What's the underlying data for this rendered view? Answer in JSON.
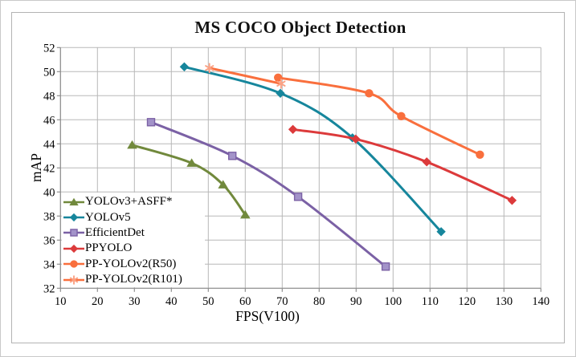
{
  "chart_data": {
    "type": "line",
    "title": "MS COCO Object Detection",
    "xlabel": "FPS(V100)",
    "ylabel": "mAP",
    "xlim": [
      10,
      140
    ],
    "ylim": [
      32,
      52
    ],
    "x_ticks": [
      10,
      20,
      30,
      40,
      50,
      60,
      70,
      80,
      90,
      100,
      110,
      120,
      130,
      140
    ],
    "y_ticks": [
      32,
      34,
      36,
      38,
      40,
      42,
      44,
      46,
      48,
      50,
      52
    ],
    "grid": true,
    "legend_position": "inside-bottom-left",
    "series": [
      {
        "name": "YOLOv3+ASFF*",
        "color": "#71893c",
        "marker": "triangle",
        "marker_color": "#71893c",
        "points": [
          [
            29.4,
            43.9
          ],
          [
            45.5,
            42.4
          ],
          [
            54,
            40.6
          ],
          [
            60,
            38.1
          ]
        ]
      },
      {
        "name": "YOLOv5",
        "color": "#16869c",
        "marker": "diamond",
        "marker_color": "#16869c",
        "points": [
          [
            43.5,
            50.4
          ],
          [
            69.5,
            48.2
          ],
          [
            89,
            44.5
          ],
          [
            113,
            36.7
          ]
        ]
      },
      {
        "name": "EfficientDet",
        "color": "#7b61a5",
        "marker": "square",
        "marker_color": "#7b61a5",
        "marker_fill": "#a393c9",
        "points": [
          [
            34.5,
            45.8
          ],
          [
            56.5,
            43.0
          ],
          [
            74.3,
            39.6
          ],
          [
            98,
            33.8
          ]
        ]
      },
      {
        "name": "PPYOLO",
        "color": "#dc3a3b",
        "marker": "diamond",
        "marker_color": "#dc3a3b",
        "points": [
          [
            72.9,
            45.2
          ],
          [
            89.9,
            44.4
          ],
          [
            109.1,
            42.5
          ],
          [
            132.2,
            39.3
          ]
        ]
      },
      {
        "name": "PP-YOLOv2(R50)",
        "color": "#f96f3d",
        "marker": "circle",
        "marker_color": "#f96f3d",
        "points": [
          [
            68.9,
            49.5
          ],
          [
            93.5,
            48.2
          ],
          [
            102.2,
            46.3
          ],
          [
            123.5,
            43.1
          ]
        ]
      },
      {
        "name": "PP-YOLOv2(R101)",
        "color": "#f96f3d",
        "marker": "xstar",
        "marker_color": "#fba183",
        "points": [
          [
            50.3,
            50.3
          ],
          [
            69.7,
            49.0
          ]
        ]
      }
    ],
    "style": {
      "grid_color": "#b8b8b8",
      "axis_color": "#8f8f8f",
      "frame_color": "#b3b3b3",
      "text_color": "#000000",
      "background": "#ffffff"
    }
  }
}
